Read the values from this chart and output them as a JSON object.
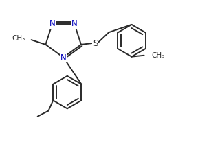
{
  "bg_color": "#ffffff",
  "line_color": "#2a2a2a",
  "N_color": "#0000bb",
  "S_color": "#2a2a2a",
  "lw": 1.4,
  "fs": 8.5,
  "figsize": [
    3.2,
    2.45
  ],
  "dpi": 100,
  "xlim": [
    0.0,
    8.0
  ],
  "ylim": [
    0.0,
    6.5
  ]
}
